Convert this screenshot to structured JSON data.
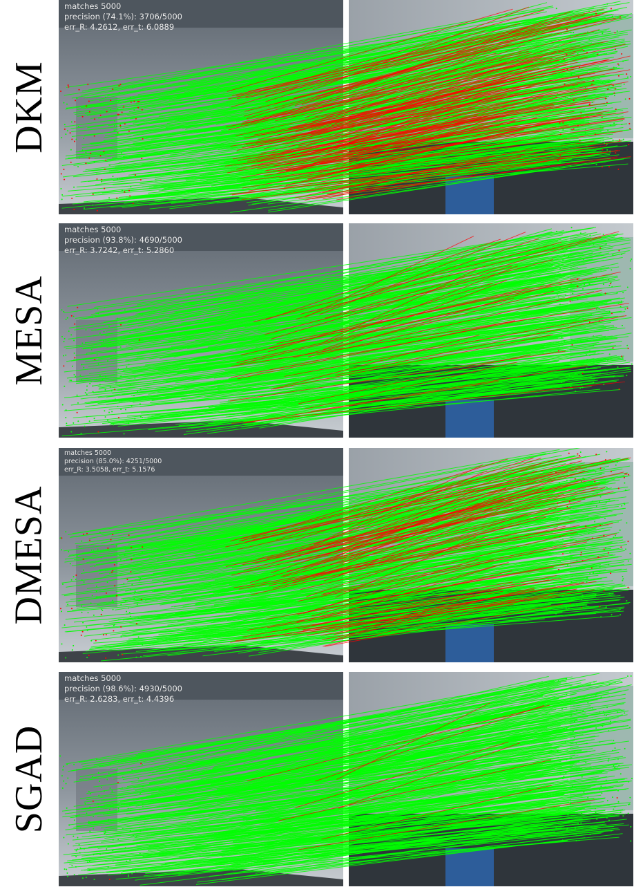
{
  "rows": [
    {
      "label": "DKM",
      "stats": [
        "matches 5000",
        "precision (74.1%): 3706/5000",
        "err_R: 4.2612, err_t: 6.0889"
      ],
      "precision": 0.741
    },
    {
      "label": "MESA",
      "stats": [
        "matches 5000",
        "precision (93.8%): 4690/5000",
        "err_R: 3.7242, err_t: 5.2860"
      ],
      "precision": 0.938
    },
    {
      "label": "DMESA",
      "stats": [
        "matches 5000",
        "precision (85.0%): 4251/5000",
        "err_R: 3.5058, err_t: 5.1576"
      ],
      "precision": 0.85
    },
    {
      "label": "SGAD",
      "stats": [
        "matches 5000",
        "precision (98.6%): 4930/5000",
        "err_R: 2.6283, err_t: 4.4396"
      ],
      "precision": 0.986
    }
  ],
  "colors": {
    "inlier": "#00ff00",
    "outlier": "#ff0000"
  }
}
